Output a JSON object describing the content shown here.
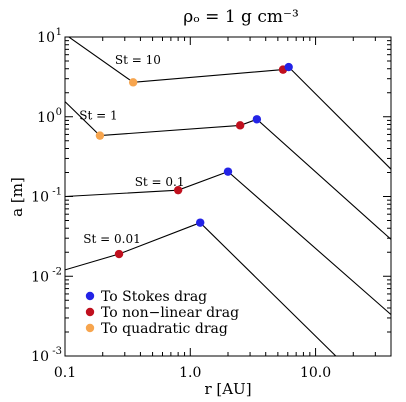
{
  "chart_data": {
    "type": "line",
    "title": "ρₒ = 1 g cm⁻³",
    "xlabel": "r [AU]",
    "ylabel": "a [m]",
    "xscale": "log",
    "yscale": "log",
    "xlim": [
      0.1,
      40
    ],
    "ylim": [
      0.001,
      10
    ],
    "x_ticks": [
      "0.1",
      "1.0",
      "10.0"
    ],
    "y_ticks": [
      {
        "base": "10",
        "exp": "1"
      },
      {
        "base": "10",
        "exp": "0"
      },
      {
        "base": "10",
        "exp": "-1"
      },
      {
        "base": "10",
        "exp": "-2"
      },
      {
        "base": "10",
        "exp": "-3"
      }
    ],
    "series": [
      {
        "name": "St = 10",
        "x": [
          0.1,
          0.35,
          5.5,
          6.1,
          40
        ],
        "y": [
          10.8,
          2.7,
          3.9,
          4.2,
          0.22
        ],
        "markers": [
          {
            "x": 0.35,
            "y": 2.7,
            "type": "quadratic"
          },
          {
            "x": 5.5,
            "y": 3.9,
            "type": "nonlinear"
          },
          {
            "x": 6.1,
            "y": 4.2,
            "type": "stokes"
          }
        ]
      },
      {
        "name": "St = 1",
        "x": [
          0.1,
          0.19,
          2.5,
          3.4,
          40
        ],
        "y": [
          1.55,
          0.58,
          0.78,
          0.93,
          0.029
        ],
        "markers": [
          {
            "x": 0.19,
            "y": 0.58,
            "type": "quadratic"
          },
          {
            "x": 2.5,
            "y": 0.78,
            "type": "nonlinear"
          },
          {
            "x": 3.4,
            "y": 0.93,
            "type": "stokes"
          }
        ]
      },
      {
        "name": "St = 0.1",
        "x": [
          0.1,
          0.8,
          2.0,
          40
        ],
        "y": [
          0.1,
          0.12,
          0.205,
          0.0033
        ],
        "markers": [
          {
            "x": 0.8,
            "y": 0.12,
            "type": "nonlinear"
          },
          {
            "x": 2.0,
            "y": 0.205,
            "type": "stokes"
          }
        ]
      },
      {
        "name": "St = 0.01",
        "x": [
          0.1,
          0.27,
          1.2,
          14.5
        ],
        "y": [
          0.012,
          0.019,
          0.047,
          0.001
        ],
        "markers": [
          {
            "x": 0.27,
            "y": 0.019,
            "type": "nonlinear"
          },
          {
            "x": 1.2,
            "y": 0.047,
            "type": "stokes"
          }
        ]
      }
    ],
    "series_labels": [
      {
        "text": "St = 10",
        "x": 0.25,
        "y": 4.6
      },
      {
        "text": "St = 1",
        "x": 0.13,
        "y": 0.92
      },
      {
        "text": "St = 0.1",
        "x": 0.36,
        "y": 0.135
      },
      {
        "text": "St = 0.01",
        "x": 0.14,
        "y": 0.026
      }
    ],
    "marker_types": [
      {
        "key": "stokes",
        "label": "To Stokes drag",
        "color": "#2323e6"
      },
      {
        "key": "nonlinear",
        "label": "To non−linear drag",
        "color": "#c0101e"
      },
      {
        "key": "quadratic",
        "label": "To quadratic drag",
        "color": "#f7a54e"
      }
    ],
    "legend_position": "bottom-left"
  }
}
